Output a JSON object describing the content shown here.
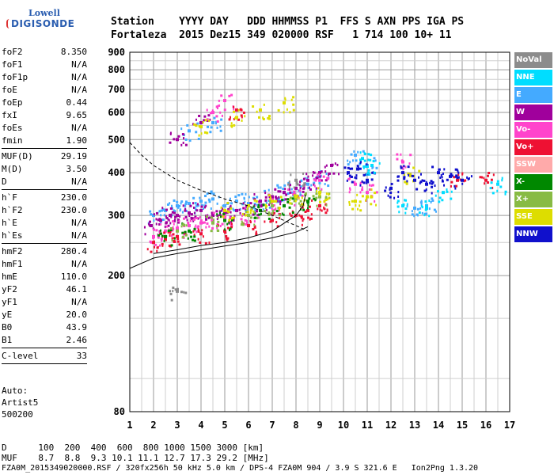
{
  "logo": {
    "line1": "Lowell",
    "line2": "DIGISONDE"
  },
  "header": {
    "line1": "Station    YYYY DAY   DDD HHMMSS P1  FFS S AXN PPS IGA PS",
    "line2": "Fortaleza  2015 Dez15 349 020000 RSF   1 714 100 10+ 11"
  },
  "params": [
    {
      "k": "foF2",
      "v": "8.350"
    },
    {
      "k": "foF1",
      "v": "N/A"
    },
    {
      "k": "foF1p",
      "v": "N/A"
    },
    {
      "k": "foE",
      "v": "N/A"
    },
    {
      "k": "foEp",
      "v": "0.44"
    },
    {
      "k": "fxI",
      "v": "9.65"
    },
    {
      "k": "foEs",
      "v": "N/A"
    },
    {
      "k": "fmin",
      "v": "1.90"
    },
    {
      "k": "MUF(D)",
      "v": "29.19"
    },
    {
      "k": "M(D)",
      "v": "3.50"
    },
    {
      "k": "D",
      "v": "N/A"
    },
    {
      "k": "h`F",
      "v": "230.0"
    },
    {
      "k": "h`F2",
      "v": "230.0"
    },
    {
      "k": "h`E",
      "v": "N/A"
    },
    {
      "k": "h`Es",
      "v": "N/A"
    },
    {
      "k": "hmF2",
      "v": "280.4"
    },
    {
      "k": "hmF1",
      "v": "N/A"
    },
    {
      "k": "hmE",
      "v": "110.0"
    },
    {
      "k": "yF2",
      "v": "46.1"
    },
    {
      "k": "yF1",
      "v": "N/A"
    },
    {
      "k": "yE",
      "v": "20.0"
    },
    {
      "k": "B0",
      "v": "43.9"
    },
    {
      "k": "B1",
      "v": "2.46"
    },
    {
      "k": "C-level",
      "v": "33"
    }
  ],
  "auto": {
    "l1": "Auto:",
    "l2": "Artist5",
    "l3": "500200"
  },
  "legend": [
    {
      "label": "NoVal",
      "color": "#8c8c8c"
    },
    {
      "label": "NNE",
      "color": "#00ddff"
    },
    {
      "label": "E",
      "color": "#44aaff"
    },
    {
      "label": "W",
      "color": "#a0009c"
    },
    {
      "label": "Vo-",
      "color": "#ff44cc"
    },
    {
      "label": "Vo+",
      "color": "#ee1133"
    },
    {
      "label": "SSW",
      "color": "#ffaaaa"
    },
    {
      "label": "X-",
      "color": "#008800"
    },
    {
      "label": "X+",
      "color": "#88bb44"
    },
    {
      "label": "SSE",
      "color": "#dddd00"
    },
    {
      "label": "NNW",
      "color": "#1010cc"
    }
  ],
  "bottom": {
    "line1": "D      100  200  400  600  800 1000 1500 3000 [km]",
    "line2": "MUF    8.7  8.8  9.3 10.1 11.1 12.7 17.3 29.2 [MHz]",
    "line3": "FZA0M_2015349020000.RSF / 320fx256h 50 kHz 5.0 km / DPS-4 FZA0M 904 / 3.9 S 321.6 E   Ion2Png 1.3.20"
  },
  "chart_data": {
    "type": "scatter",
    "title": "",
    "xlabel": "",
    "ylabel": "",
    "xlim": [
      1,
      17
    ],
    "ylim": [
      80,
      900
    ],
    "y_scale": "log",
    "grid": true,
    "x_ticks": [
      1,
      2,
      3,
      4,
      5,
      6,
      7,
      8,
      9,
      10,
      11,
      12,
      13,
      14,
      15,
      16,
      17
    ],
    "y_ticks": [
      80,
      200,
      300,
      400,
      500,
      600,
      700,
      800,
      900
    ],
    "legend_position": "right",
    "series": [
      {
        "name": "E",
        "color": "#44aaff",
        "points": [
          [
            2.0,
            300
          ],
          [
            2.5,
            310
          ],
          [
            3.0,
            320
          ],
          [
            3.5,
            325
          ],
          [
            4.0,
            330
          ],
          [
            4.5,
            335
          ],
          [
            5.0,
            320
          ],
          [
            5.5,
            330
          ],
          [
            6.0,
            325
          ],
          [
            6.5,
            330
          ],
          [
            7.0,
            340
          ],
          [
            7.5,
            350
          ],
          [
            8.0,
            360
          ],
          [
            8.5,
            370
          ],
          [
            9.0,
            390
          ],
          [
            10.5,
            450
          ],
          [
            11.0,
            420
          ],
          [
            13.0,
            315
          ],
          [
            13.5,
            320
          ],
          [
            3.5,
            530
          ],
          [
            4.5,
            560
          ]
        ]
      },
      {
        "name": "W",
        "color": "#a0009c",
        "points": [
          [
            1.9,
            280
          ],
          [
            2.3,
            290
          ],
          [
            2.7,
            300
          ],
          [
            3.0,
            300
          ],
          [
            3.5,
            305
          ],
          [
            4.0,
            310
          ],
          [
            4.5,
            300
          ],
          [
            5.0,
            305
          ],
          [
            5.5,
            310
          ],
          [
            6.0,
            320
          ],
          [
            6.5,
            330
          ],
          [
            7.0,
            340
          ],
          [
            7.5,
            350
          ],
          [
            8.0,
            360
          ],
          [
            8.5,
            380
          ],
          [
            9.0,
            400
          ],
          [
            9.5,
            420
          ],
          [
            3.0,
            500
          ],
          [
            4.0,
            560
          ]
        ]
      },
      {
        "name": "Vo-",
        "color": "#ff44cc",
        "points": [
          [
            2.0,
            260
          ],
          [
            2.5,
            270
          ],
          [
            3.0,
            275
          ],
          [
            3.5,
            280
          ],
          [
            4.0,
            285
          ],
          [
            4.5,
            290
          ],
          [
            5.0,
            295
          ],
          [
            6.0,
            300
          ],
          [
            7.0,
            320
          ],
          [
            8.0,
            340
          ],
          [
            9.0,
            380
          ],
          [
            10.5,
            370
          ],
          [
            11.0,
            350
          ],
          [
            4.5,
            600
          ],
          [
            5.0,
            650
          ],
          [
            12.5,
            430
          ]
        ]
      },
      {
        "name": "Vo+",
        "color": "#ee1133",
        "points": [
          [
            2.0,
            250
          ],
          [
            2.5,
            255
          ],
          [
            3.0,
            260
          ],
          [
            4.0,
            265
          ],
          [
            5.0,
            270
          ],
          [
            6.0,
            280
          ],
          [
            7.0,
            290
          ],
          [
            8.0,
            300
          ],
          [
            8.5,
            310
          ],
          [
            9.0,
            320
          ],
          [
            16.0,
            380
          ],
          [
            14.8,
            380
          ],
          [
            5.5,
            610
          ]
        ]
      },
      {
        "name": "X-",
        "color": "#008800",
        "points": [
          [
            2.5,
            260
          ],
          [
            3.5,
            270
          ],
          [
            5.0,
            290
          ],
          [
            6.5,
            310
          ],
          [
            7.5,
            320
          ],
          [
            8.5,
            330
          ]
        ]
      },
      {
        "name": "X+",
        "color": "#88bb44",
        "points": [
          [
            3.0,
            270
          ],
          [
            4.5,
            285
          ],
          [
            6.0,
            300
          ],
          [
            7.0,
            320
          ],
          [
            8.0,
            335
          ],
          [
            9.0,
            340
          ]
        ]
      },
      {
        "name": "SSE",
        "color": "#dddd00",
        "points": [
          [
            5.0,
            310
          ],
          [
            6.0,
            320
          ],
          [
            7.0,
            330
          ],
          [
            8.0,
            340
          ],
          [
            9.0,
            350
          ],
          [
            10.5,
            330
          ],
          [
            11.0,
            340
          ],
          [
            4.0,
            545
          ],
          [
            5.5,
            580
          ],
          [
            6.5,
            610
          ],
          [
            7.5,
            640
          ],
          [
            12.8,
            395
          ]
        ]
      },
      {
        "name": "NNW",
        "color": "#1010cc",
        "points": [
          [
            10.2,
            400
          ],
          [
            10.6,
            410
          ],
          [
            11.0,
            380
          ],
          [
            12.0,
            360
          ],
          [
            12.5,
            400
          ],
          [
            13.0,
            380
          ],
          [
            13.5,
            370
          ],
          [
            14.0,
            400
          ],
          [
            14.5,
            390
          ],
          [
            15.0,
            380
          ]
        ]
      },
      {
        "name": "NNE",
        "color": "#00ddff",
        "points": [
          [
            10.8,
            440
          ],
          [
            11.2,
            420
          ],
          [
            12.5,
            320
          ],
          [
            13.5,
            315
          ],
          [
            14.2,
            350
          ],
          [
            16.5,
            370
          ]
        ]
      },
      {
        "name": "NoVal",
        "color": "#8c8c8c",
        "points": [
          [
            3.0,
            180
          ],
          [
            8.0,
            380
          ]
        ]
      }
    ]
  }
}
